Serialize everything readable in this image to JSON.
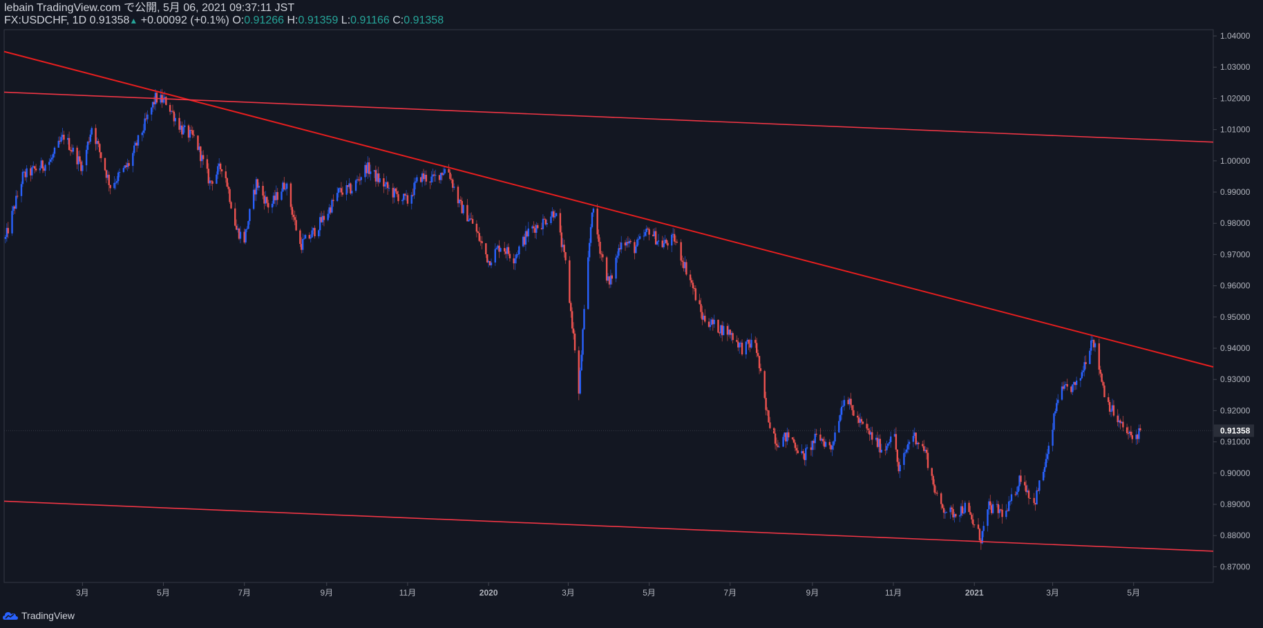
{
  "header": {
    "line1": "lebain TradingView.com で公開, 5月 06, 2021 09:37:11 JST",
    "symbol": "FX:USDCHF, 1D",
    "last": "0.91358",
    "up_arrow": "▲",
    "change": "+0.00092 (+0.1%)",
    "o_label": "O:",
    "o_value": "0.91266",
    "h_label": "H:",
    "h_value": "0.91359",
    "l_label": "L:",
    "l_value": "0.91166",
    "c_label": "C:",
    "c_value": "0.91358"
  },
  "footer": {
    "brand": "TradingView",
    "icon": "tradingview-cloud-icon"
  },
  "colors": {
    "background": "#131722",
    "up_candle": "#2962ff",
    "down_candle": "#ef5350",
    "trendline": "#e81e1e",
    "channel_line": "#f23645",
    "axis_text": "#b2b5be",
    "last_price_tag": "#2a2e39"
  },
  "chart_data": {
    "type": "candlestick",
    "symbol": "FX:USDCHF",
    "interval": "1D",
    "ylim": [
      0.865,
      1.042
    ],
    "y_ticks": [
      "1.04000",
      "1.03000",
      "1.02000",
      "1.01000",
      "1.00000",
      "0.99000",
      "0.98000",
      "0.97000",
      "0.96000",
      "0.95000",
      "0.94000",
      "0.93000",
      "0.92000",
      "0.91000",
      "0.90000",
      "0.89000",
      "0.88000",
      "0.87000"
    ],
    "x_ticks": [
      "3月",
      "5月",
      "7月",
      "9月",
      "11月",
      "2020",
      "3月",
      "5月",
      "7月",
      "9月",
      "11月",
      "2021",
      "3月",
      "5月"
    ],
    "last_price": "0.91358",
    "close_path": [
      [
        "2019-01-02",
        0.975
      ],
      [
        "2019-01-15",
        0.995
      ],
      [
        "2019-02-05",
        1.0
      ],
      [
        "2019-02-15",
        1.008
      ],
      [
        "2019-03-01",
        0.998
      ],
      [
        "2019-03-08",
        1.011
      ],
      [
        "2019-03-22",
        0.992
      ],
      [
        "2019-04-05",
        0.999
      ],
      [
        "2019-04-25",
        1.02
      ],
      [
        "2019-05-03",
        1.019
      ],
      [
        "2019-05-15",
        1.01
      ],
      [
        "2019-05-25",
        1.007
      ],
      [
        "2019-06-05",
        0.993
      ],
      [
        "2019-06-15",
        0.999
      ],
      [
        "2019-06-25",
        0.978
      ],
      [
        "2019-07-01",
        0.975
      ],
      [
        "2019-07-10",
        0.993
      ],
      [
        "2019-07-20",
        0.985
      ],
      [
        "2019-08-01",
        0.993
      ],
      [
        "2019-08-12",
        0.973
      ],
      [
        "2019-08-20",
        0.976
      ],
      [
        "2019-09-01",
        0.983
      ],
      [
        "2019-09-10",
        0.99
      ],
      [
        "2019-09-20",
        0.991
      ],
      [
        "2019-10-01",
        0.998
      ],
      [
        "2019-10-10",
        0.994
      ],
      [
        "2019-10-20",
        0.99
      ],
      [
        "2019-11-01",
        0.987
      ],
      [
        "2019-11-10",
        0.995
      ],
      [
        "2019-11-20",
        0.994
      ],
      [
        "2019-12-01",
        0.998
      ],
      [
        "2019-12-10",
        0.986
      ],
      [
        "2019-12-20",
        0.98
      ],
      [
        "2020-01-01",
        0.968
      ],
      [
        "2020-01-10",
        0.973
      ],
      [
        "2020-01-20",
        0.969
      ],
      [
        "2020-02-01",
        0.978
      ],
      [
        "2020-02-10",
        0.98
      ],
      [
        "2020-02-20",
        0.984
      ],
      [
        "2020-02-28",
        0.967
      ],
      [
        "2020-03-06",
        0.94
      ],
      [
        "2020-03-09",
        0.925
      ],
      [
        "2020-03-12",
        0.945
      ],
      [
        "2020-03-19",
        0.985
      ],
      [
        "2020-03-25",
        0.972
      ],
      [
        "2020-04-01",
        0.96
      ],
      [
        "2020-04-10",
        0.975
      ],
      [
        "2020-04-20",
        0.972
      ],
      [
        "2020-05-01",
        0.978
      ],
      [
        "2020-05-10",
        0.973
      ],
      [
        "2020-05-20",
        0.975
      ],
      [
        "2020-06-01",
        0.962
      ],
      [
        "2020-06-10",
        0.95
      ],
      [
        "2020-06-20",
        0.947
      ],
      [
        "2020-07-01",
        0.945
      ],
      [
        "2020-07-10",
        0.94
      ],
      [
        "2020-07-20",
        0.942
      ],
      [
        "2020-07-28",
        0.92
      ],
      [
        "2020-08-05",
        0.91
      ],
      [
        "2020-08-15",
        0.912
      ],
      [
        "2020-08-25",
        0.905
      ],
      [
        "2020-09-05",
        0.912
      ],
      [
        "2020-09-15",
        0.908
      ],
      [
        "2020-09-25",
        0.925
      ],
      [
        "2020-10-05",
        0.917
      ],
      [
        "2020-10-15",
        0.912
      ],
      [
        "2020-10-25",
        0.907
      ],
      [
        "2020-11-01",
        0.915
      ],
      [
        "2020-11-05",
        0.9
      ],
      [
        "2020-11-15",
        0.913
      ],
      [
        "2020-11-25",
        0.907
      ],
      [
        "2020-12-05",
        0.89
      ],
      [
        "2020-12-15",
        0.887
      ],
      [
        "2020-12-25",
        0.889
      ],
      [
        "2021-01-06",
        0.879
      ],
      [
        "2021-01-12",
        0.889
      ],
      [
        "2021-01-25",
        0.887
      ],
      [
        "2021-02-05",
        0.899
      ],
      [
        "2021-02-15",
        0.89
      ],
      [
        "2021-02-26",
        0.907
      ],
      [
        "2021-03-05",
        0.925
      ],
      [
        "2021-03-12",
        0.927
      ],
      [
        "2021-03-20",
        0.928
      ],
      [
        "2021-03-31",
        0.944
      ],
      [
        "2021-04-10",
        0.924
      ],
      [
        "2021-04-20",
        0.916
      ],
      [
        "2021-04-30",
        0.911
      ],
      [
        "2021-05-06",
        0.91358
      ]
    ],
    "lines": [
      {
        "name": "",
        "from": [
          "2019-01-01",
          1.035
        ],
        "to": [
          "2021-06-30",
          0.934
        ]
      },
      {
        "name": "",
        "from": [
          "2019-01-01",
          1.022
        ],
        "to": [
          "2021-06-30",
          1.006
        ]
      },
      {
        "name": "",
        "from": [
          "2019-01-01",
          0.891
        ],
        "to": [
          "2021-06-30",
          0.875
        ]
      }
    ]
  }
}
